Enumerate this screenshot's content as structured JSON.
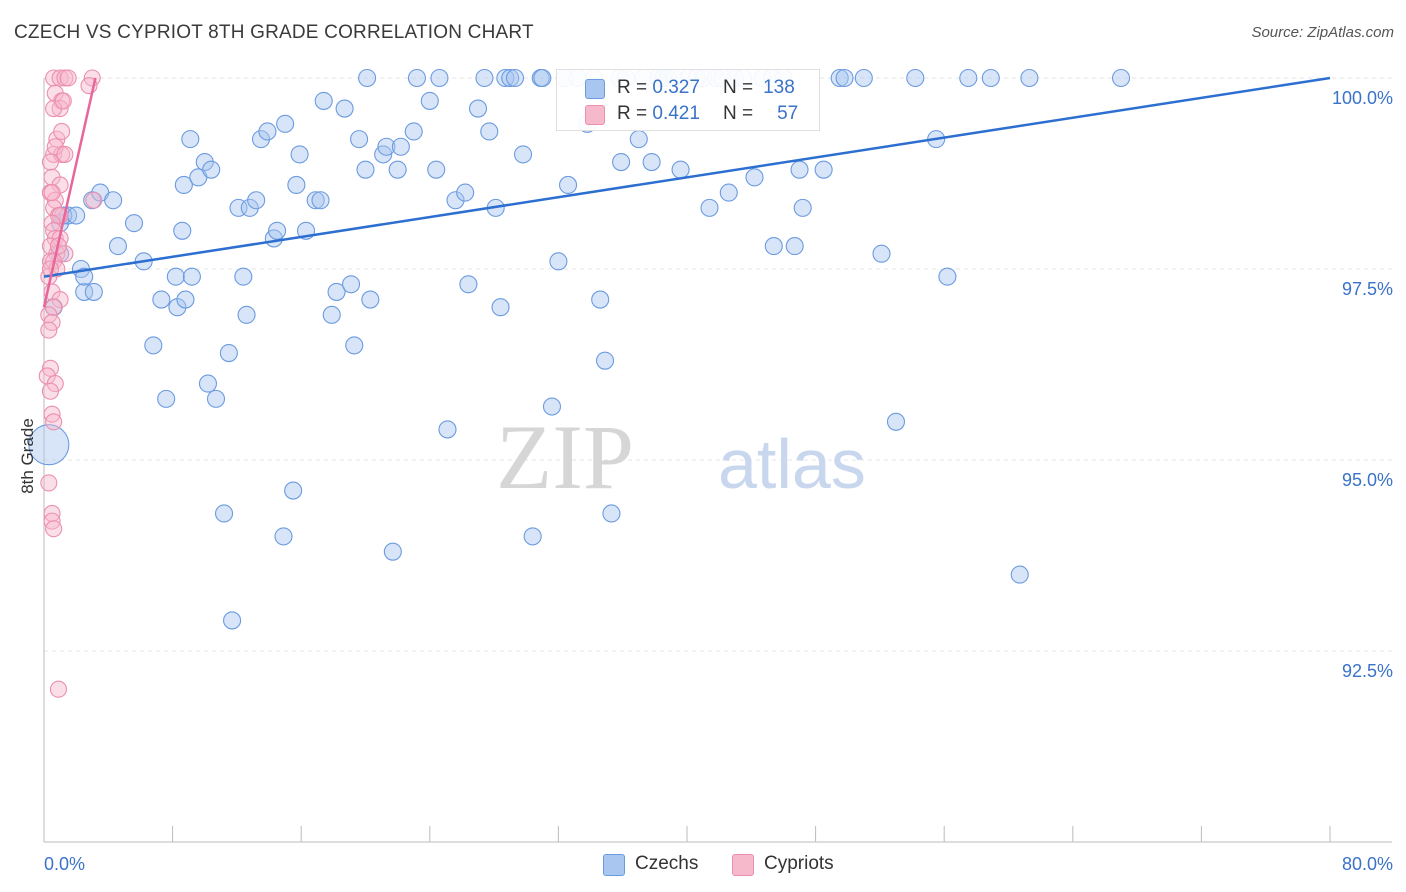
{
  "title": "CZECH VS CYPRIOT 8TH GRADE CORRELATION CHART",
  "source": "Source: ZipAtlas.com",
  "watermark": {
    "zip": "ZIP",
    "atlas": "atlas"
  },
  "legend": {
    "r_label": "R =",
    "n_label": "N =",
    "czechs": {
      "r": "0.327",
      "n": "138"
    },
    "cypriots": {
      "r": "0.421",
      "n": "57"
    }
  },
  "bottom_legend": {
    "czechs": "Czechs",
    "cypriots": "Cypriots"
  },
  "colors": {
    "czech_fill": "#a9c6f0",
    "czech_stroke": "#6b9be0",
    "czech_line": "#2c6fd1",
    "cypriot_fill": "#f6b8cb",
    "cypriot_stroke": "#ec8fae",
    "cypriot_line": "#e8679a",
    "tick_text": "#3a72c8",
    "grid": "#e6e6e6"
  },
  "chart_data": {
    "type": "scatter",
    "title": "CZECH VS CYPRIOT 8TH GRADE CORRELATION CHART",
    "xlabel": "",
    "ylabel": "8th Grade",
    "xlim": [
      0,
      80
    ],
    "ylim": [
      90,
      100.25
    ],
    "x_tick_labels": [
      "0.0%",
      "80.0%"
    ],
    "y_ticks": [
      92.5,
      95.0,
      97.5,
      100.0
    ],
    "y_tick_labels": [
      "92.5%",
      "95.0%",
      "97.5%",
      "100.0%"
    ],
    "series": [
      {
        "name": "Czechs",
        "trend": {
          "x1": 0,
          "y1": 97.4,
          "x2": 80,
          "y2": 100.0
        },
        "points": [
          [
            0.6,
            97.0
          ],
          [
            0.3,
            95.2
          ],
          [
            1.0,
            98.1
          ],
          [
            1.5,
            98.2
          ],
          [
            1.0,
            97.7
          ],
          [
            1.2,
            98.2
          ],
          [
            2.0,
            98.2
          ],
          [
            3.0,
            98.4
          ],
          [
            3.5,
            98.5
          ],
          [
            2.3,
            97.5
          ],
          [
            2.5,
            97.2
          ],
          [
            3.1,
            97.2
          ],
          [
            2.5,
            97.4
          ],
          [
            4.6,
            97.8
          ],
          [
            4.3,
            98.4
          ],
          [
            5.6,
            98.1
          ],
          [
            6.2,
            97.6
          ],
          [
            6.8,
            96.5
          ],
          [
            7.3,
            97.1
          ],
          [
            7.6,
            95.8
          ],
          [
            8.3,
            97.0
          ],
          [
            8.2,
            97.4
          ],
          [
            8.8,
            97.1
          ],
          [
            8.6,
            98.0
          ],
          [
            8.7,
            98.6
          ],
          [
            9.1,
            99.2
          ],
          [
            9.6,
            98.7
          ],
          [
            10.0,
            98.9
          ],
          [
            10.4,
            98.8
          ],
          [
            9.2,
            97.4
          ],
          [
            10.2,
            96.0
          ],
          [
            10.7,
            95.8
          ],
          [
            11.2,
            94.3
          ],
          [
            11.5,
            96.4
          ],
          [
            11.7,
            92.9
          ],
          [
            12.1,
            98.3
          ],
          [
            12.4,
            97.4
          ],
          [
            12.6,
            96.9
          ],
          [
            12.8,
            98.3
          ],
          [
            13.2,
            98.4
          ],
          [
            13.5,
            99.2
          ],
          [
            13.9,
            99.3
          ],
          [
            14.3,
            97.9
          ],
          [
            14.5,
            98.0
          ],
          [
            14.9,
            94.0
          ],
          [
            15.0,
            99.4
          ],
          [
            15.5,
            94.6
          ],
          [
            15.7,
            98.6
          ],
          [
            15.9,
            99.0
          ],
          [
            16.3,
            98.0
          ],
          [
            16.9,
            98.4
          ],
          [
            17.2,
            98.4
          ],
          [
            17.4,
            99.7
          ],
          [
            17.9,
            96.9
          ],
          [
            18.2,
            97.2
          ],
          [
            18.7,
            99.6
          ],
          [
            19.1,
            97.3
          ],
          [
            19.3,
            96.5
          ],
          [
            19.6,
            99.2
          ],
          [
            20.0,
            98.8
          ],
          [
            20.1,
            100.0
          ],
          [
            20.3,
            97.1
          ],
          [
            21.1,
            99.0
          ],
          [
            21.3,
            99.1
          ],
          [
            21.7,
            93.8
          ],
          [
            22.0,
            98.8
          ],
          [
            22.2,
            99.1
          ],
          [
            23.0,
            99.3
          ],
          [
            23.2,
            100.0
          ],
          [
            24.0,
            99.7
          ],
          [
            24.4,
            98.8
          ],
          [
            24.6,
            100.0
          ],
          [
            25.1,
            95.4
          ],
          [
            25.6,
            98.4
          ],
          [
            26.2,
            98.5
          ],
          [
            26.4,
            97.3
          ],
          [
            27.0,
            99.6
          ],
          [
            27.4,
            100.0
          ],
          [
            27.7,
            99.3
          ],
          [
            28.1,
            98.3
          ],
          [
            28.4,
            97.0
          ],
          [
            28.7,
            100.0
          ],
          [
            29.0,
            100.0
          ],
          [
            29.3,
            100.0
          ],
          [
            29.8,
            99.0
          ],
          [
            30.4,
            94.0
          ],
          [
            30.9,
            100.0
          ],
          [
            31.0,
            100.0
          ],
          [
            31.6,
            95.7
          ],
          [
            32.0,
            97.6
          ],
          [
            32.4,
            100.0
          ],
          [
            32.6,
            98.6
          ],
          [
            33.2,
            100.0
          ],
          [
            33.8,
            99.4
          ],
          [
            34.2,
            100.0
          ],
          [
            34.6,
            97.1
          ],
          [
            34.9,
            96.3
          ],
          [
            35.3,
            94.3
          ],
          [
            35.8,
            100.0
          ],
          [
            36.2,
            100.0
          ],
          [
            35.9,
            98.9
          ],
          [
            37.0,
            99.2
          ],
          [
            37.3,
            100.0
          ],
          [
            37.8,
            98.9
          ],
          [
            38.2,
            100.0
          ],
          [
            38.5,
            100.0
          ],
          [
            38.8,
            100.0
          ],
          [
            39.2,
            100.0
          ],
          [
            39.6,
            98.8
          ],
          [
            40.1,
            100.0
          ],
          [
            40.6,
            100.0
          ],
          [
            41.0,
            100.0
          ],
          [
            41.4,
            98.3
          ],
          [
            41.8,
            100.0
          ],
          [
            42.2,
            100.0
          ],
          [
            42.6,
            98.5
          ],
          [
            43.0,
            100.0
          ],
          [
            43.5,
            100.0
          ],
          [
            44.2,
            98.7
          ],
          [
            44.7,
            100.0
          ],
          [
            45.3,
            100.0
          ],
          [
            45.4,
            97.8
          ],
          [
            46.0,
            100.0
          ],
          [
            46.7,
            97.8
          ],
          [
            47.0,
            98.8
          ],
          [
            47.2,
            98.3
          ],
          [
            48.5,
            98.8
          ],
          [
            49.5,
            100.0
          ],
          [
            49.8,
            100.0
          ],
          [
            51.0,
            100.0
          ],
          [
            52.1,
            97.7
          ],
          [
            53.0,
            95.5
          ],
          [
            54.2,
            100.0
          ],
          [
            55.5,
            99.2
          ],
          [
            56.2,
            97.4
          ],
          [
            57.5,
            100.0
          ],
          [
            58.9,
            100.0
          ],
          [
            60.7,
            93.5
          ],
          [
            61.3,
            100.0
          ],
          [
            67.0,
            100.0
          ]
        ]
      },
      {
        "name": "Cypriots",
        "trend": {
          "x1": 0,
          "y1": 97.0,
          "x2": 3.2,
          "y2": 100.0
        },
        "points": [
          [
            0.6,
            100.0
          ],
          [
            1.0,
            100.0
          ],
          [
            1.3,
            100.0
          ],
          [
            1.5,
            100.0
          ],
          [
            3.0,
            100.0
          ],
          [
            0.7,
            99.8
          ],
          [
            1.1,
            99.7
          ],
          [
            1.0,
            99.6
          ],
          [
            0.6,
            99.6
          ],
          [
            1.2,
            99.7
          ],
          [
            2.8,
            99.9
          ],
          [
            0.8,
            99.2
          ],
          [
            0.6,
            99.0
          ],
          [
            1.1,
            99.0
          ],
          [
            0.4,
            98.9
          ],
          [
            0.5,
            98.7
          ],
          [
            1.0,
            98.6
          ],
          [
            0.4,
            98.5
          ],
          [
            0.7,
            98.4
          ],
          [
            3.1,
            98.4
          ],
          [
            0.6,
            98.3
          ],
          [
            0.9,
            98.2
          ],
          [
            1.0,
            98.2
          ],
          [
            0.5,
            98.1
          ],
          [
            0.6,
            98.0
          ],
          [
            0.7,
            97.9
          ],
          [
            1.0,
            97.9
          ],
          [
            0.4,
            97.8
          ],
          [
            0.8,
            97.7
          ],
          [
            1.3,
            97.7
          ],
          [
            0.4,
            97.6
          ],
          [
            0.6,
            97.6
          ],
          [
            0.8,
            97.5
          ],
          [
            0.3,
            97.4
          ],
          [
            0.5,
            97.2
          ],
          [
            1.0,
            97.1
          ],
          [
            0.6,
            97.0
          ],
          [
            0.3,
            96.9
          ],
          [
            0.5,
            96.8
          ],
          [
            0.3,
            96.7
          ],
          [
            0.4,
            96.2
          ],
          [
            0.2,
            96.1
          ],
          [
            0.7,
            96.0
          ],
          [
            0.4,
            95.9
          ],
          [
            0.5,
            95.6
          ],
          [
            0.6,
            95.5
          ],
          [
            0.3,
            94.7
          ],
          [
            0.5,
            94.3
          ],
          [
            0.5,
            94.2
          ],
          [
            0.6,
            94.1
          ],
          [
            0.9,
            92.0
          ],
          [
            0.5,
            98.5
          ],
          [
            0.7,
            99.1
          ],
          [
            1.1,
            99.3
          ],
          [
            1.3,
            99.0
          ],
          [
            0.9,
            97.8
          ],
          [
            0.4,
            97.5
          ]
        ]
      }
    ]
  }
}
